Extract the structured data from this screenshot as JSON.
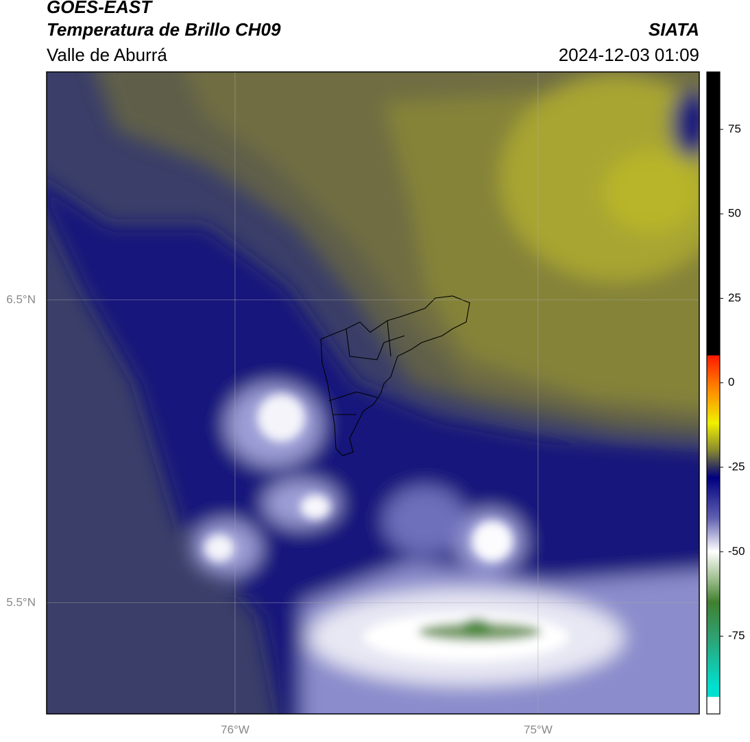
{
  "header": {
    "title": "GOES-EAST",
    "subtitle": "Temperatura de Brillo CH09",
    "source": "SIATA",
    "region": "Valle de Aburrá",
    "timestamp": "2024-12-03 01:09"
  },
  "map": {
    "xlim": [
      -76.622,
      -74.468
    ],
    "ylim": [
      5.133,
      7.253
    ],
    "xticks": [
      {
        "value": -76,
        "label": "76°W"
      },
      {
        "value": -75,
        "label": "75°W"
      }
    ],
    "yticks": [
      {
        "value": 5.5,
        "label": "5.5°N"
      },
      {
        "value": 6.5,
        "label": "6.5°N"
      }
    ]
  },
  "colorbar": {
    "lim": [
      -98,
      92
    ],
    "ticks": [
      -75,
      -50,
      -25,
      0,
      25,
      50,
      75
    ]
  }
}
